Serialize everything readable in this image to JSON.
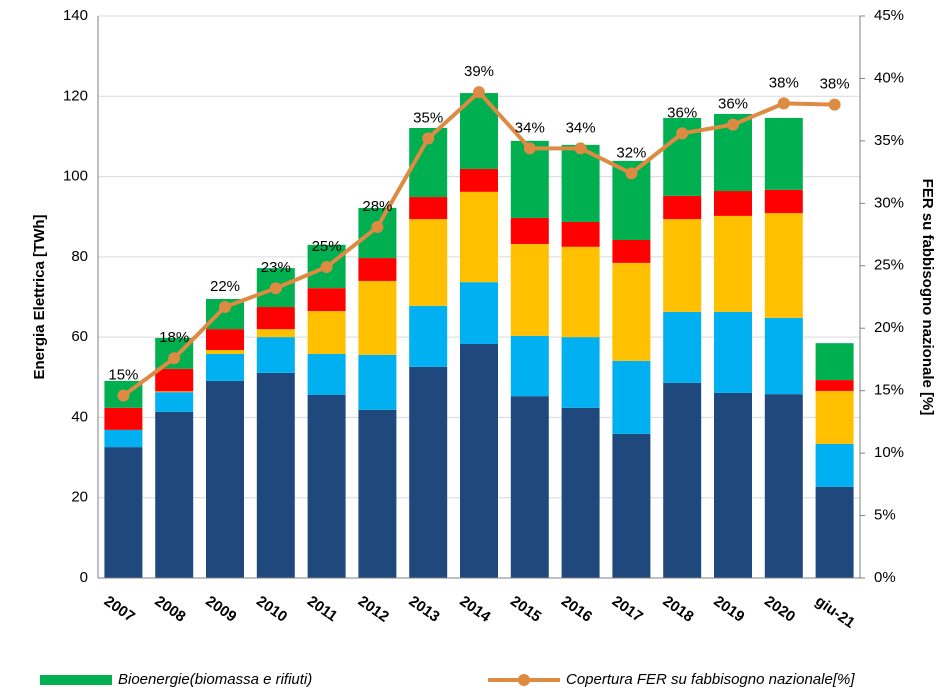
{
  "chart_data": {
    "type": "bar",
    "stacked": true,
    "y_label": "Energia Elettrica [TWh]",
    "y2_label": "FER su fabbisogno nazionale [%]",
    "categories": [
      "2007",
      "2008",
      "2009",
      "2010",
      "2011",
      "2012",
      "2013",
      "2014",
      "2015",
      "2016",
      "2017",
      "2018",
      "2019",
      "2020",
      "giu-21"
    ],
    "ylim": [
      0,
      140
    ],
    "yticks": [
      0,
      20,
      40,
      60,
      80,
      100,
      120,
      140
    ],
    "y2lim": [
      0,
      45
    ],
    "y2ticks": [
      {
        "value": 0,
        "label": "0%"
      },
      {
        "value": 5,
        "label": "5%"
      },
      {
        "value": 10,
        "label": "10%"
      },
      {
        "value": 15,
        "label": "15%"
      },
      {
        "value": 20,
        "label": "20%"
      },
      {
        "value": 25,
        "label": "25%"
      },
      {
        "value": 30,
        "label": "30%"
      },
      {
        "value": 35,
        "label": "35%"
      },
      {
        "value": 40,
        "label": "40%"
      },
      {
        "value": 45,
        "label": "45%"
      }
    ],
    "grid": true,
    "legend": "bottom",
    "series": [
      {
        "color": "#1f497d",
        "values": [
          32.6,
          41.4,
          49.1,
          51.1,
          45.6,
          41.9,
          52.6,
          58.3,
          45.3,
          42.4,
          35.9,
          48.6,
          46.1,
          45.8,
          22.7
        ]
      },
      {
        "color": "#00b0f0",
        "values": [
          4.3,
          4.9,
          6.7,
          8.9,
          10.2,
          13.7,
          15.2,
          15.4,
          15.0,
          17.6,
          18.2,
          17.7,
          20.2,
          19.0,
          10.7
        ]
      },
      {
        "color": "#ffc000",
        "values": [
          0,
          0.2,
          1.0,
          2.0,
          10.7,
          18.4,
          21.6,
          22.5,
          22.9,
          22.5,
          24.4,
          23.1,
          23.9,
          26.1,
          13.2
        ]
      },
      {
        "color": "#ff0000",
        "values": [
          5.5,
          5.6,
          5.2,
          5.5,
          5.7,
          5.7,
          5.5,
          5.7,
          6.5,
          6.2,
          5.7,
          5.8,
          6.2,
          5.8,
          2.7
        ]
      },
      {
        "name": "Bioenergie(biomassa e rifiuti)",
        "color": "#00b050",
        "values": [
          6.7,
          7.7,
          7.5,
          9.7,
          10.8,
          12.5,
          17.2,
          18.9,
          19.2,
          19.2,
          19.7,
          19.4,
          19.2,
          17.9,
          9.2
        ]
      },
      {
        "name": "Copertura FER su fabbisogno nazionale[%]",
        "type": "line",
        "axis": "y2",
        "color": "#dd8a43",
        "values": [
          14.6,
          17.6,
          21.7,
          23.2,
          24.9,
          28.1,
          35.2,
          38.9,
          34.4,
          34.4,
          32.4,
          35.6,
          36.3,
          38.0,
          37.9
        ],
        "value_labels": [
          "15%",
          "18%",
          "22%",
          "23%",
          "25%",
          "28%",
          "35%",
          "39%",
          "34%",
          "34%",
          "32%",
          "36%",
          "36%",
          "38%",
          "38%"
        ]
      }
    ]
  }
}
